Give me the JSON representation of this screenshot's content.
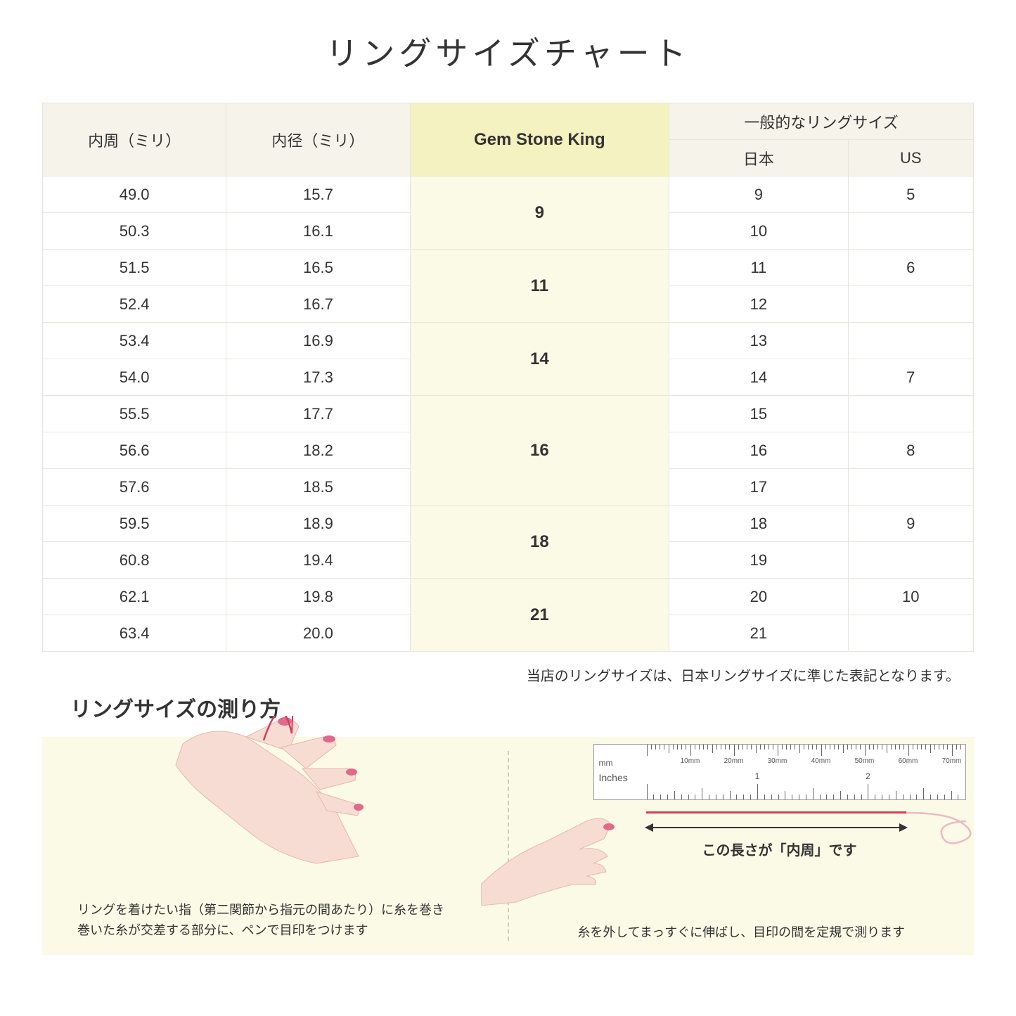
{
  "title": "リングサイズチャート",
  "headers": {
    "circumference": "内周（ミリ）",
    "diameter": "内径（ミリ）",
    "gsk": "Gem Stone King",
    "general": "一般的なリングサイズ",
    "japan": "日本",
    "us": "US"
  },
  "table": {
    "header_bg": "#f5f3ea",
    "gsk_header_bg": "#f3f2c0",
    "gsk_cell_bg": "#fbfae6",
    "border_color": "#e8e5dc",
    "font_size": 22,
    "rows": [
      {
        "circ": "49.0",
        "diam": "15.7",
        "jp": "9",
        "us": "5"
      },
      {
        "circ": "50.3",
        "diam": "16.1",
        "jp": "10",
        "us": ""
      },
      {
        "circ": "51.5",
        "diam": "16.5",
        "jp": "11",
        "us": "6"
      },
      {
        "circ": "52.4",
        "diam": "16.7",
        "jp": "12",
        "us": ""
      },
      {
        "circ": "53.4",
        "diam": "16.9",
        "jp": "13",
        "us": ""
      },
      {
        "circ": "54.0",
        "diam": "17.3",
        "jp": "14",
        "us": "7"
      },
      {
        "circ": "55.5",
        "diam": "17.7",
        "jp": "15",
        "us": ""
      },
      {
        "circ": "56.6",
        "diam": "18.2",
        "jp": "16",
        "us": "8"
      },
      {
        "circ": "57.6",
        "diam": "18.5",
        "jp": "17",
        "us": ""
      },
      {
        "circ": "59.5",
        "diam": "18.9",
        "jp": "18",
        "us": "9"
      },
      {
        "circ": "60.8",
        "diam": "19.4",
        "jp": "19",
        "us": ""
      },
      {
        "circ": "62.1",
        "diam": "19.8",
        "jp": "20",
        "us": "10"
      },
      {
        "circ": "63.4",
        "diam": "20.0",
        "jp": "21",
        "us": ""
      }
    ],
    "gsk_groups": [
      {
        "value": "9",
        "span": 2
      },
      {
        "value": "11",
        "span": 2
      },
      {
        "value": "14",
        "span": 2
      },
      {
        "value": "16",
        "span": 3
      },
      {
        "value": "18",
        "span": 2
      },
      {
        "value": "21",
        "span": 2
      }
    ]
  },
  "note": "当店のリングサイズは、日本リングサイズに準じた表記となります。",
  "measure_title": "リングサイズの測り方",
  "instructions": {
    "bg": "#fbfae6",
    "left_text": "リングを着けたい指（第二関節から指元の間あたり）に糸を巻き\n巻いた糸が交差する部分に、ペンで目印をつけます",
    "right_text": "糸を外してまっすぐに伸ばし、目印の間を定規で測ります",
    "arrow_caption": "この長さが「内周」です",
    "ruler_mm_label": "mm",
    "ruler_in_label": "Inches",
    "ruler_mm_marks": [
      "10mm",
      "20mm",
      "30mm",
      "40mm",
      "50mm",
      "60mm",
      "70mm"
    ],
    "ruler_in_marks": [
      "1",
      "2"
    ],
    "hand_skin": "#f7dcd4",
    "nail_color": "#e06a8a",
    "thread_color": "#d63b5b"
  }
}
